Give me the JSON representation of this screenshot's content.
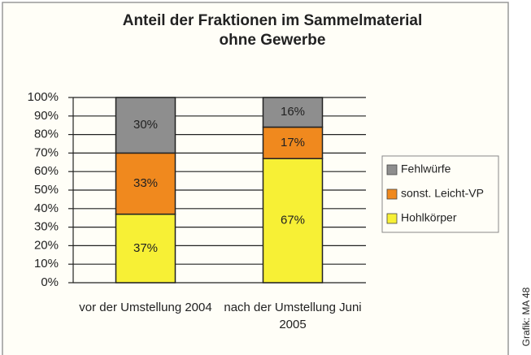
{
  "chart_data": {
    "type": "stacked_bar",
    "title": "Anteil der Fraktionen im Sammelmaterial ohne Gewerbe",
    "categories": [
      "vor der Umstellung 2004",
      "nach der Umstellung Juni 2005"
    ],
    "series": [
      {
        "name": "Hohlkörper",
        "color": "#f7f035",
        "values": [
          37,
          67
        ],
        "value_labels": [
          "37%",
          "67%"
        ]
      },
      {
        "name": "sonst. Leicht-VP",
        "color": "#f0891e",
        "values": [
          33,
          17
        ],
        "value_labels": [
          "33%",
          "17%"
        ]
      },
      {
        "name": "Fehlwürfe",
        "color": "#8e8e8e",
        "values": [
          30,
          16
        ],
        "value_labels": [
          "30%",
          "16%"
        ]
      }
    ],
    "ylim": [
      0,
      100
    ],
    "yticks": [
      {
        "value": 0,
        "label": "0%"
      },
      {
        "value": 10,
        "label": "10%"
      },
      {
        "value": 20,
        "label": "20%"
      },
      {
        "value": 30,
        "label": "30%"
      },
      {
        "value": 40,
        "label": "40%"
      },
      {
        "value": 50,
        "label": "50%"
      },
      {
        "value": 60,
        "label": "60%"
      },
      {
        "value": 70,
        "label": "70%"
      },
      {
        "value": 80,
        "label": "80%"
      },
      {
        "value": 90,
        "label": "90%"
      },
      {
        "value": 100,
        "label": "100%"
      }
    ],
    "grid": true,
    "legend": "right",
    "source": "Grafik: MA 48"
  }
}
